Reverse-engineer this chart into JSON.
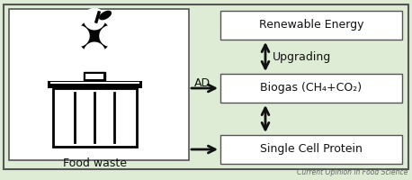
{
  "bg_outer": "#deecd6",
  "bg_inner_left": "#ffffff",
  "bg_inner_boxes": "#ffffff",
  "border_color": "#555555",
  "arrow_color": "#111111",
  "text_color": "#111111",
  "footer_text": "Current Opinion in Food Science",
  "food_waste_label": "Food waste",
  "box_label_re": "Renewable Energy",
  "box_label_bg": "Biogas (CH₄+CO₂)",
  "box_label_scp": "Single Cell Protein",
  "ad_label": "AD",
  "upgrading_label": "Upgrading"
}
